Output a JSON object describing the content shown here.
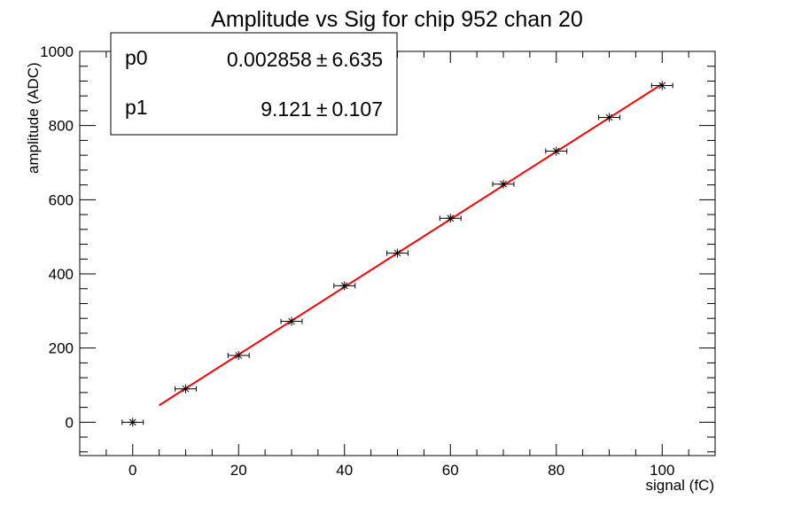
{
  "chart_data": {
    "type": "scatter",
    "title": "Amplitude vs Sig for chip 952 chan 20",
    "xlabel": "signal (fC)",
    "ylabel": "amplitude (ADC)",
    "xlim": [
      -10,
      110
    ],
    "ylim": [
      -90,
      1000
    ],
    "x_ticks": [
      0,
      20,
      40,
      60,
      80,
      100
    ],
    "y_ticks": [
      0,
      200,
      400,
      600,
      800,
      1000
    ],
    "grid": false,
    "series": [
      {
        "marker": "star",
        "color": "#000000",
        "x": [
          0,
          10,
          20,
          30,
          40,
          50,
          60,
          70,
          80,
          90,
          100
        ],
        "y": [
          0,
          90,
          180,
          272,
          368,
          456,
          550,
          642,
          731,
          822,
          908
        ],
        "x_err": 2
      }
    ],
    "fit": {
      "type": "linear",
      "color": "#ff0000",
      "x_range": [
        5,
        100
      ],
      "p0": 0.002858,
      "p1": 9.121
    },
    "stats_box": {
      "position": "top-left",
      "rows": [
        {
          "name": "p0",
          "value": "0.002858",
          "error": "6.635"
        },
        {
          "name": "p1",
          "value": "9.121",
          "error": "0.107"
        }
      ],
      "pm_symbol": "±"
    }
  }
}
